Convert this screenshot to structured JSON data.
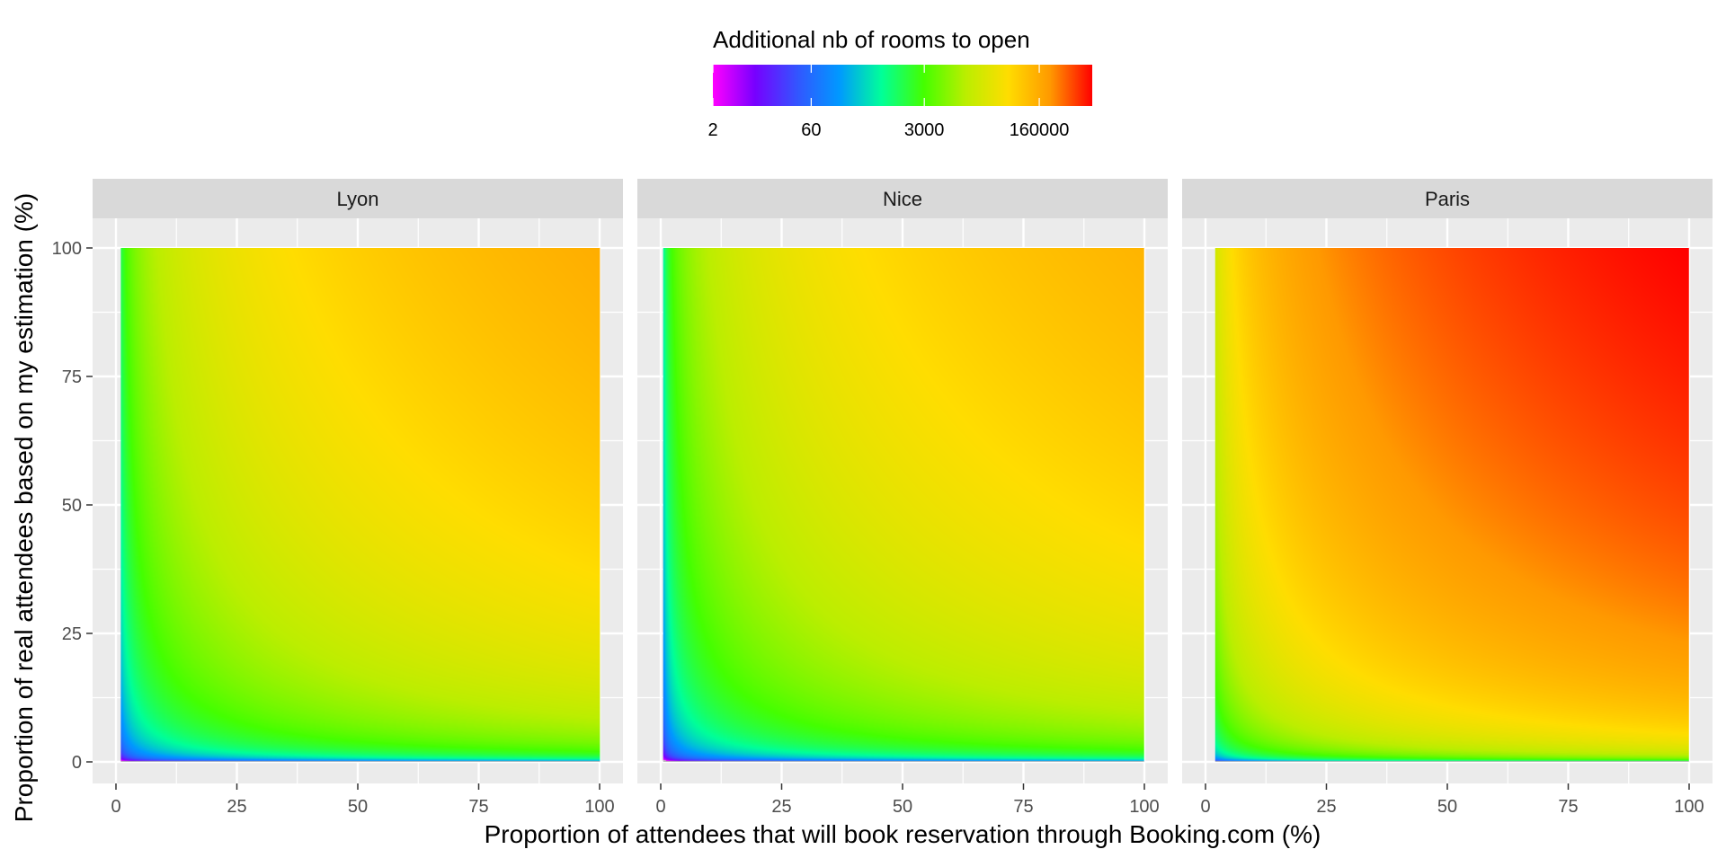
{
  "chart_data": {
    "type": "heatmap",
    "facet_labels": [
      "Lyon",
      "Nice",
      "Paris"
    ],
    "xlabel": "Proportion of attendees that will book reservation through Booking.com (%)",
    "ylabel": "Proportion of real attendees based on my estimation (%)",
    "x_ticks": [
      0,
      25,
      50,
      75,
      100
    ],
    "y_ticks": [
      0,
      25,
      50,
      75,
      100
    ],
    "xlim": [
      0,
      100
    ],
    "ylim": [
      0,
      100
    ],
    "grid": true,
    "legend": {
      "title": "Additional nb of rooms to open",
      "position": "top",
      "scale": "log",
      "ticks": [
        2,
        60,
        3000,
        160000
      ],
      "tick_labels": [
        "2",
        "60",
        "3000",
        "160000"
      ],
      "range": [
        2,
        1000000
      ],
      "colors": [
        "#ff00ff",
        "#7700ff",
        "#3355ff",
        "#0099ff",
        "#00ff99",
        "#44ff00",
        "#bbee00",
        "#ffdd00",
        "#ff9900",
        "#ff0000"
      ]
    },
    "panels": [
      {
        "name": "Lyon",
        "x_min": 1,
        "max_value": 150000
      },
      {
        "name": "Nice",
        "x_min": 0.5,
        "max_value": 130000
      },
      {
        "name": "Paris",
        "x_min": 2,
        "max_value": 1000000
      }
    ],
    "na_color": "#bebebe"
  }
}
